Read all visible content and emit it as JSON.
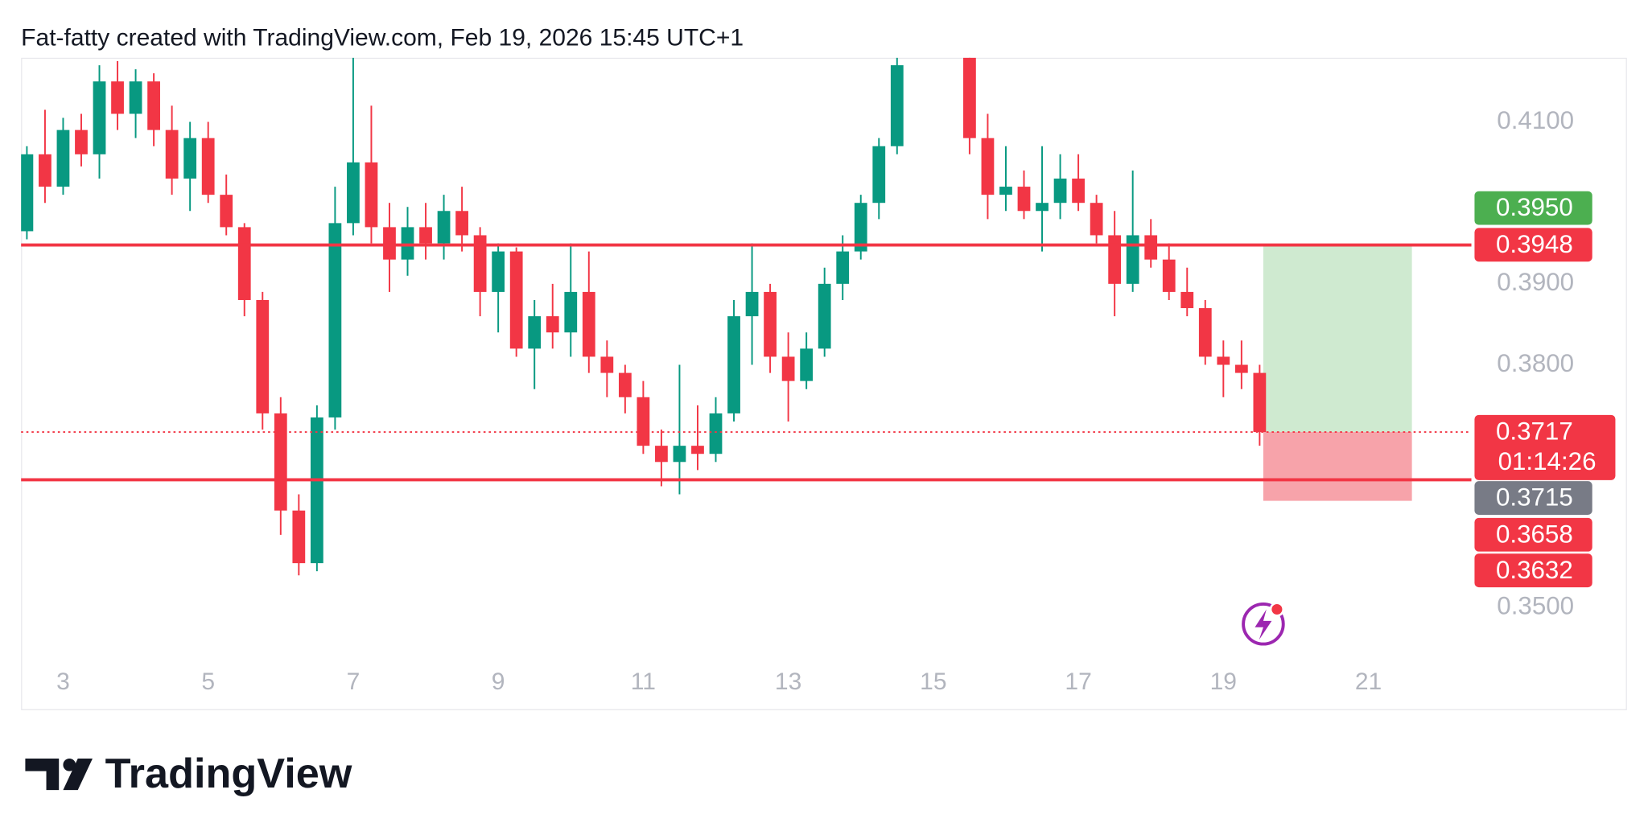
{
  "header": {
    "text": "Fat-fatty created with TradingView.com, Feb 19, 2026 15:45 UTC+1"
  },
  "brand": "TradingView",
  "chart_data": {
    "type": "candlestick",
    "up_color": "#089981",
    "down_color": "#f23645",
    "xlim": [
      2.42,
      22.42
    ],
    "xticks": [
      3,
      5,
      7,
      9,
      11,
      13,
      15,
      17,
      19,
      21
    ],
    "ylim": [
      0.34331,
      0.41792
    ],
    "yticks": [
      {
        "value": 0.41,
        "label": "0.4100"
      },
      {
        "value": 0.39,
        "label": "0.3900"
      },
      {
        "value": 0.38,
        "label": "0.3800"
      },
      {
        "value": 0.35,
        "label": "0.3500"
      }
    ],
    "x": [
      2.5,
      2.75,
      3,
      3.25,
      3.5,
      3.75,
      4,
      4.25,
      4.5,
      4.75,
      5,
      5.25,
      5.5,
      5.75,
      6,
      6.25,
      6.5,
      6.75,
      7,
      7.25,
      7.5,
      7.75,
      8,
      8.25,
      8.5,
      8.75,
      9,
      9.25,
      9.5,
      9.75,
      10,
      10.25,
      10.5,
      10.75,
      11,
      11.25,
      11.5,
      11.75,
      12,
      12.25,
      12.5,
      12.75,
      13,
      13.25,
      13.5,
      13.75,
      14,
      14.25,
      14.5,
      15.5,
      15.75,
      16,
      16.25,
      16.5,
      16.75,
      17,
      17.25,
      17.5,
      17.75,
      18,
      18.25,
      18.5,
      18.75,
      19,
      19.25,
      19.5
    ],
    "ohlc": [
      [
        0.3965,
        0.407,
        0.3955,
        0.406
      ],
      [
        0.406,
        0.4115,
        0.4,
        0.402
      ],
      [
        0.402,
        0.4105,
        0.401,
        0.409
      ],
      [
        0.409,
        0.411,
        0.4045,
        0.406
      ],
      [
        0.406,
        0.417,
        0.403,
        0.415
      ],
      [
        0.415,
        0.4175,
        0.409,
        0.411
      ],
      [
        0.411,
        0.4165,
        0.408,
        0.415
      ],
      [
        0.415,
        0.416,
        0.407,
        0.409
      ],
      [
        0.409,
        0.412,
        0.401,
        0.403
      ],
      [
        0.403,
        0.41,
        0.399,
        0.408
      ],
      [
        0.408,
        0.41,
        0.4,
        0.401
      ],
      [
        0.401,
        0.4035,
        0.396,
        0.397
      ],
      [
        0.397,
        0.3975,
        0.386,
        0.388
      ],
      [
        0.388,
        0.389,
        0.372,
        0.374
      ],
      [
        0.374,
        0.376,
        0.359,
        0.362
      ],
      [
        0.362,
        0.364,
        0.354,
        0.3555
      ],
      [
        0.3555,
        0.375,
        0.3545,
        0.3735
      ],
      [
        0.3735,
        0.402,
        0.372,
        0.3975
      ],
      [
        0.3975,
        0.418,
        0.396,
        0.405
      ],
      [
        0.405,
        0.412,
        0.395,
        0.397
      ],
      [
        0.397,
        0.4,
        0.389,
        0.393
      ],
      [
        0.393,
        0.3995,
        0.391,
        0.397
      ],
      [
        0.397,
        0.4,
        0.393,
        0.395
      ],
      [
        0.395,
        0.401,
        0.393,
        0.399
      ],
      [
        0.399,
        0.402,
        0.394,
        0.396
      ],
      [
        0.396,
        0.397,
        0.386,
        0.389
      ],
      [
        0.389,
        0.395,
        0.384,
        0.394
      ],
      [
        0.394,
        0.3945,
        0.381,
        0.382
      ],
      [
        0.382,
        0.388,
        0.377,
        0.386
      ],
      [
        0.386,
        0.39,
        0.382,
        0.384
      ],
      [
        0.384,
        0.395,
        0.381,
        0.389
      ],
      [
        0.389,
        0.394,
        0.379,
        0.381
      ],
      [
        0.381,
        0.383,
        0.376,
        0.379
      ],
      [
        0.379,
        0.38,
        0.374,
        0.376
      ],
      [
        0.376,
        0.378,
        0.369,
        0.37
      ],
      [
        0.37,
        0.372,
        0.365,
        0.368
      ],
      [
        0.368,
        0.38,
        0.364,
        0.37
      ],
      [
        0.37,
        0.375,
        0.367,
        0.369
      ],
      [
        0.369,
        0.376,
        0.368,
        0.374
      ],
      [
        0.374,
        0.388,
        0.373,
        0.386
      ],
      [
        0.386,
        0.395,
        0.38,
        0.389
      ],
      [
        0.389,
        0.39,
        0.379,
        0.381
      ],
      [
        0.381,
        0.384,
        0.373,
        0.378
      ],
      [
        0.378,
        0.384,
        0.377,
        0.382
      ],
      [
        0.382,
        0.392,
        0.381,
        0.39
      ],
      [
        0.39,
        0.396,
        0.388,
        0.394
      ],
      [
        0.394,
        0.401,
        0.393,
        0.4
      ],
      [
        0.4,
        0.408,
        0.398,
        0.407
      ],
      [
        0.407,
        0.418,
        0.406,
        0.417
      ],
      [
        0.418,
        0.418,
        0.406,
        0.408
      ],
      [
        0.408,
        0.411,
        0.398,
        0.401
      ],
      [
        0.401,
        0.407,
        0.399,
        0.402
      ],
      [
        0.402,
        0.404,
        0.398,
        0.399
      ],
      [
        0.399,
        0.407,
        0.394,
        0.4
      ],
      [
        0.4,
        0.406,
        0.398,
        0.403
      ],
      [
        0.403,
        0.406,
        0.399,
        0.4
      ],
      [
        0.4,
        0.401,
        0.395,
        0.396
      ],
      [
        0.396,
        0.399,
        0.386,
        0.39
      ],
      [
        0.39,
        0.404,
        0.389,
        0.396
      ],
      [
        0.396,
        0.398,
        0.392,
        0.393
      ],
      [
        0.393,
        0.395,
        0.388,
        0.389
      ],
      [
        0.389,
        0.392,
        0.386,
        0.387
      ],
      [
        0.387,
        0.388,
        0.38,
        0.381
      ],
      [
        0.381,
        0.383,
        0.376,
        0.38
      ],
      [
        0.38,
        0.383,
        0.377,
        0.379
      ],
      [
        0.379,
        0.38,
        0.37,
        0.3717
      ]
    ],
    "lines": [
      {
        "value": 0.3948,
        "color": "#f23645"
      },
      {
        "value": 0.3658,
        "color": "#f23645"
      }
    ],
    "current_price": 0.3717,
    "position": {
      "x": [
        19.55,
        21.6
      ],
      "entry": 0.3717,
      "target": 0.3948,
      "stop": 0.3632,
      "profit_color": "#cfead0",
      "loss_color": "#f7a3aa"
    },
    "price_labels": [
      {
        "value": 0.395,
        "label": "0.3950",
        "color": "#4caf50"
      },
      {
        "value": 0.3948,
        "label": "0.3948",
        "color": "#f23645"
      },
      {
        "value": 0.3717,
        "label": "0.3717",
        "color": "#f23645",
        "countdown": "01:14:26"
      },
      {
        "value": 0.3715,
        "label": "0.3715",
        "color": "#787b86"
      },
      {
        "value": 0.3658,
        "label": "0.3658",
        "color": "#f23645"
      },
      {
        "value": 0.3632,
        "label": "0.3632",
        "color": "#f23645"
      }
    ]
  }
}
